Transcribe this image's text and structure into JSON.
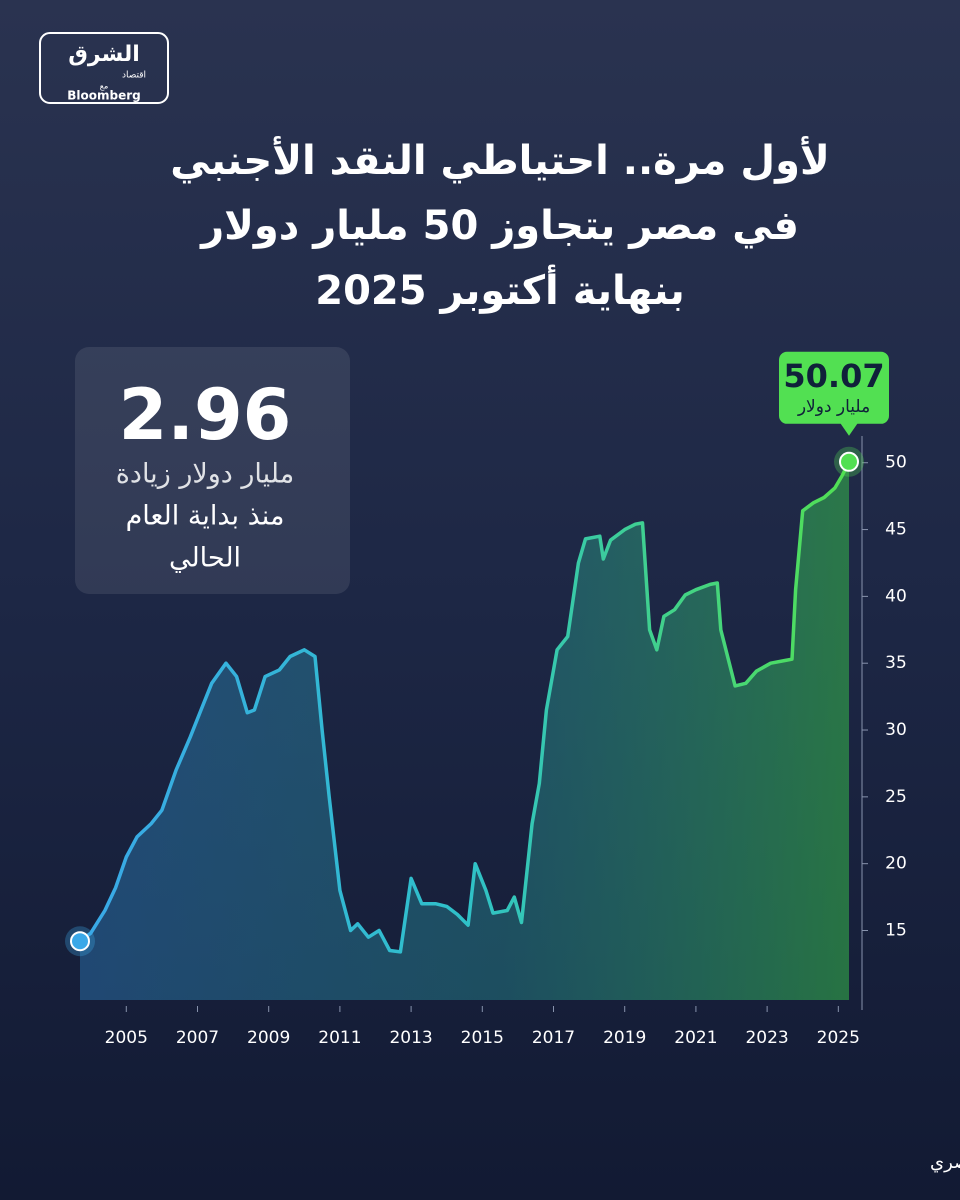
{
  "logo": {
    "name": "الشرق",
    "sub": "اقتصاد",
    "with": "مع",
    "partner": "Bloomberg"
  },
  "chart_data": {
    "type": "line",
    "title": [
      "لأول مرة.. احتياطي النقد الأجنبي",
      "في مصر يتجاوز 50 مليار دولار",
      "بنهاية أكتوبر 2025"
    ],
    "x": [
      2004.2,
      2004.5,
      2004.9,
      2005.2,
      2005.5,
      2005.8,
      2006.2,
      2006.5,
      2006.9,
      2007.3,
      2007.6,
      2007.9,
      2008.3,
      2008.6,
      2008.9,
      2009.1,
      2009.4,
      2009.8,
      2010.1,
      2010.5,
      2010.8,
      2011.0,
      2011.2,
      2011.5,
      2011.8,
      2012.0,
      2012.3,
      2012.6,
      2012.9,
      2013.2,
      2013.5,
      2013.8,
      2014.2,
      2014.5,
      2014.8,
      2015.1,
      2015.3,
      2015.6,
      2015.8,
      2016.2,
      2016.4,
      2016.6,
      2016.9,
      2017.1,
      2017.3,
      2017.6,
      2017.9,
      2018.2,
      2018.4,
      2018.8,
      2018.9,
      2019.1,
      2019.5,
      2019.8,
      2020.0,
      2020.2,
      2020.4,
      2020.6,
      2020.9,
      2021.2,
      2021.5,
      2021.9,
      2022.1,
      2022.2,
      2022.6,
      2022.9,
      2023.2,
      2023.6,
      2024.0,
      2024.2,
      2024.3,
      2024.5,
      2024.8,
      2025.1,
      2025.4,
      2025.6,
      2025.8
    ],
    "series": [
      {
        "name": "احتياطي النقد الأجنبي",
        "color": "#3aa8e8",
        "end_color": "#52e052",
        "values": [
          14.2,
          14.8,
          16.5,
          18.2,
          20.5,
          22,
          23,
          24,
          27,
          29.5,
          31.5,
          33.5,
          35,
          34,
          31.3,
          31.5,
          34,
          34.5,
          35.5,
          36,
          35.5,
          30,
          25,
          18,
          15,
          15.5,
          14.5,
          15,
          13.5,
          13.4,
          18.9,
          17,
          17,
          16.8,
          16.2,
          15.4,
          20,
          18,
          16.3,
          16.5,
          17.5,
          15.6,
          23,
          26,
          31.5,
          36,
          37,
          42.5,
          44.3,
          44.5,
          42.8,
          44.2,
          45,
          45.4,
          45.5,
          37.5,
          36,
          38.5,
          39,
          40.1,
          40.5,
          40.9,
          41,
          37.5,
          33.3,
          33.5,
          34.4,
          35,
          35.2,
          35.3,
          40.5,
          46.4,
          47,
          47.4,
          48.1,
          49,
          50.07
        ]
      }
    ],
    "xlim": [
      2004.2,
      2025.8
    ],
    "ylim": [
      9.8,
      52
    ],
    "xticks": [
      {
        "value": 2005.5,
        "label": "2005"
      },
      {
        "value": 2007.5,
        "label": "2007"
      },
      {
        "value": 2009.5,
        "label": "2009"
      },
      {
        "value": 2011.5,
        "label": "2011"
      },
      {
        "value": 2013.5,
        "label": "2013"
      },
      {
        "value": 2015.5,
        "label": "2015"
      },
      {
        "value": 2017.5,
        "label": "2017"
      },
      {
        "value": 2019.5,
        "label": "2019"
      },
      {
        "value": 2021.5,
        "label": "2021"
      },
      {
        "value": 2023.5,
        "label": "2023"
      },
      {
        "value": 2025.5,
        "label": "2025"
      }
    ],
    "yticks": [
      15,
      20,
      25,
      30,
      35,
      40,
      45,
      50
    ],
    "unit_label": "مليار دولار",
    "annotation": {
      "value": 2.96,
      "lines": [
        "مليار دولار زيادة",
        "منذ بداية العام",
        "الحالي"
      ]
    },
    "source": "المصدر: بيانات البنك المركزي المصري"
  }
}
